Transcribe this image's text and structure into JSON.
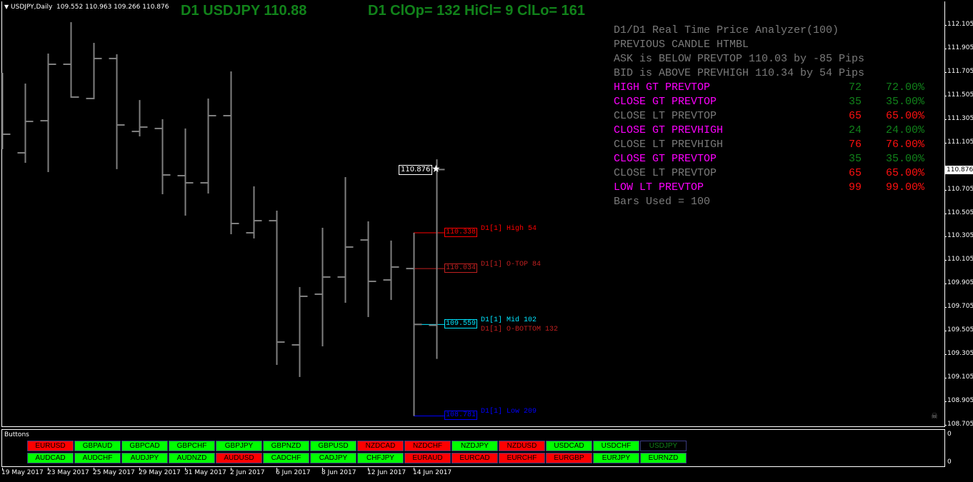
{
  "header": {
    "symbol": "USDJPY,Daily",
    "ohlc_readout": "109.552 110.963 109.266 110.876",
    "title_left": "D1 USDJPY 110.88",
    "title_right": "D1 ClOp= 132 HiCl= 9 ClLo= 161"
  },
  "analyzer": {
    "lines": [
      "D1/D1 Real Time Price Analyzer(100)",
      "PREVIOUS CANDLE HTMBL",
      "ASK is BELOW PREVTOP 110.03 by -85 Pips",
      "BID is ABOVE PREVHIGH 110.34 by 54 Pips"
    ],
    "stats": [
      {
        "label": "HIGH GT PREVTOP",
        "count": "72",
        "pct": "72.00%",
        "label_color": "#ff00ff",
        "value_color": "#11821a"
      },
      {
        "label": "CLOSE GT PREVTOP",
        "count": "35",
        "pct": "35.00%",
        "label_color": "#ff00ff",
        "value_color": "#11821a"
      },
      {
        "label": "CLOSE LT PREVTOP",
        "count": "65",
        "pct": "65.00%",
        "label_color": "#7a7a7a",
        "value_color": "#ff1010"
      },
      {
        "label": "CLOSE GT PREVHIGH",
        "count": "24",
        "pct": "24.00%",
        "label_color": "#ff00ff",
        "value_color": "#11821a"
      },
      {
        "label": "CLOSE LT PREVHIGH",
        "count": "76",
        "pct": "76.00%",
        "label_color": "#7a7a7a",
        "value_color": "#ff1010"
      },
      {
        "label": "CLOSE GT PREVTOP",
        "count": "35",
        "pct": "35.00%",
        "label_color": "#ff00ff",
        "value_color": "#11821a"
      },
      {
        "label": "CLOSE LT PREVTOP",
        "count": "65",
        "pct": "65.00%",
        "label_color": "#7a7a7a",
        "value_color": "#ff1010"
      },
      {
        "label": "LOW LT PREVTOP",
        "count": "99",
        "pct": "99.00%",
        "label_color": "#ff00ff",
        "value_color": "#ff1010"
      }
    ],
    "footer": "Bars Used = 100"
  },
  "levels": [
    {
      "price": "110.338",
      "label": "D1[1] High  54",
      "color": "#ff0000"
    },
    {
      "price": "110.034",
      "label": "D1[1] O-TOP 84",
      "color": "#c02020"
    },
    {
      "price": "109.559",
      "label": "D1[1] Mid    102",
      "color": "#00e5ff",
      "overlay_label": "D1[1] O-BOTTOM 132",
      "overlay_color": "#c02020"
    },
    {
      "price": "108.781",
      "label": "D1[1] Low  209",
      "color": "#0000ff"
    }
  ],
  "current_price": "110.876",
  "subwindow": {
    "title": "Buttons",
    "axis_top": "0",
    "axis_bottom": "0"
  },
  "buttons": {
    "row1": [
      {
        "label": "EURUSD",
        "state": "red"
      },
      {
        "label": "GBPAUD",
        "state": "green"
      },
      {
        "label": "GBPCAD",
        "state": "green"
      },
      {
        "label": "GBPCHF",
        "state": "green"
      },
      {
        "label": "GBPJPY",
        "state": "green"
      },
      {
        "label": "GBPNZD",
        "state": "green"
      },
      {
        "label": "GBPUSD",
        "state": "green"
      },
      {
        "label": "NZDCAD",
        "state": "red"
      },
      {
        "label": "NZDCHF",
        "state": "red"
      },
      {
        "label": "NZDJPY",
        "state": "green"
      },
      {
        "label": "NZDUSD",
        "state": "red"
      },
      {
        "label": "USDCAD",
        "state": "green"
      },
      {
        "label": "USDCHF",
        "state": "green"
      },
      {
        "label": "USDJPY",
        "state": "active"
      }
    ],
    "row2": [
      {
        "label": "AUDCAD",
        "state": "green"
      },
      {
        "label": "AUDCHF",
        "state": "green"
      },
      {
        "label": "AUDJPY",
        "state": "green"
      },
      {
        "label": "AUDNZD",
        "state": "green"
      },
      {
        "label": "AUDUSD",
        "state": "red"
      },
      {
        "label": "CADCHF",
        "state": "green"
      },
      {
        "label": "CADJPY",
        "state": "green"
      },
      {
        "label": "CHFJPY",
        "state": "green"
      },
      {
        "label": "EURAUD",
        "state": "red"
      },
      {
        "label": "EURCAD",
        "state": "red"
      },
      {
        "label": "EURCHF",
        "state": "red"
      },
      {
        "label": "EURGBP",
        "state": "red"
      },
      {
        "label": "EURJPY",
        "state": "green"
      },
      {
        "label": "EURNZD",
        "state": "green"
      }
    ],
    "colors": {
      "green": "#00ff00",
      "red": "#ff0000",
      "active_text": "#11821a"
    }
  },
  "chart_data": {
    "type": "ohlc",
    "price_axis_ticks": [
      "112.105",
      "111.905",
      "111.705",
      "111.505",
      "111.305",
      "111.105",
      "110.705",
      "110.505",
      "110.305",
      "110.105",
      "109.905",
      "109.705",
      "109.505",
      "109.305",
      "109.105",
      "108.905",
      "108.705"
    ],
    "ylim": [
      108.705,
      112.105
    ],
    "date_labels": [
      "19 May 2017",
      "23 May 2017",
      "25 May 2017",
      "29 May 2017",
      "31 May 2017",
      "2 Jun 2017",
      "6 Jun 2017",
      "8 Jun 2017",
      "12 Jun 2017",
      "14 Jun 2017"
    ],
    "bar_color": "#808080",
    "bars": [
      {
        "o": null,
        "h": 111.698,
        "l": 111.049,
        "c": 111.176
      },
      {
        "o": 111.018,
        "h": 111.607,
        "l": 110.933,
        "c": 111.285
      },
      {
        "o": 111.291,
        "h": 111.862,
        "l": 110.854,
        "c": 111.771
      },
      {
        "o": 111.771,
        "h": 112.129,
        "l": 111.486,
        "c": 111.492
      },
      {
        "o": 111.48,
        "h": 111.953,
        "l": 111.474,
        "c": 111.82
      },
      {
        "o": 111.82,
        "h": 111.856,
        "l": 110.879,
        "c": 111.255
      },
      {
        "o": 111.2,
        "h": 111.467,
        "l": 111.158,
        "c": 111.237
      },
      {
        "o": 111.225,
        "h": 111.304,
        "l": 110.666,
        "c": 110.83
      },
      {
        "o": 110.824,
        "h": 111.225,
        "l": 110.484,
        "c": 110.763
      },
      {
        "o": 110.763,
        "h": 111.48,
        "l": 110.672,
        "c": 111.334
      },
      {
        "o": 111.334,
        "h": 111.71,
        "l": 110.326,
        "c": 110.417
      },
      {
        "o": 110.338,
        "h": 110.733,
        "l": 110.29,
        "c": 110.441
      },
      {
        "o": 110.441,
        "h": 110.526,
        "l": 109.215,
        "c": 109.409
      },
      {
        "o": 109.385,
        "h": 109.877,
        "l": 109.112,
        "c": 109.798
      },
      {
        "o": 109.816,
        "h": 110.381,
        "l": 109.373,
        "c": 109.962
      },
      {
        "o": 109.962,
        "h": 110.812,
        "l": 109.743,
        "c": 110.217
      },
      {
        "o": 110.277,
        "h": 110.435,
        "l": 109.622,
        "c": 109.925
      },
      {
        "o": 109.937,
        "h": 110.272,
        "l": 109.767,
        "c": 110.047
      },
      {
        "o": 110.034,
        "h": 110.338,
        "l": 108.781,
        "c": 109.559
      },
      {
        "o": 109.552,
        "h": 110.963,
        "l": 109.266,
        "c": 110.876
      }
    ]
  }
}
